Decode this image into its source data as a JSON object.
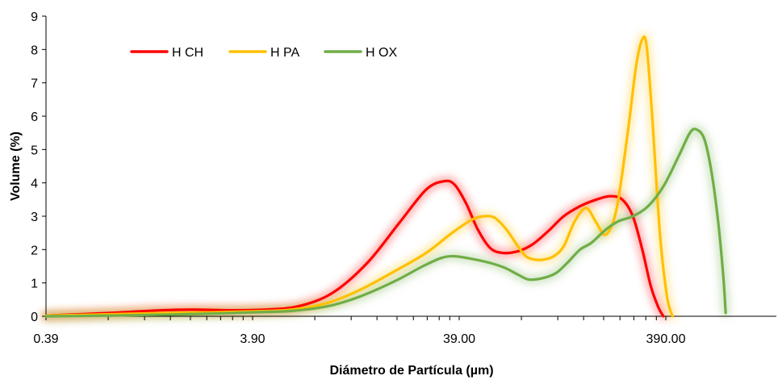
{
  "chart_data": {
    "type": "line",
    "xlabel": "Diámetro de Partícula (µm)",
    "ylabel": "Volume (%)",
    "x_scale": "log",
    "xlim": [
      0.39,
      800
    ],
    "ylim": [
      0,
      9
    ],
    "x_ticks": [
      {
        "value": 0.39,
        "label": "0.39"
      },
      {
        "value": 3.9,
        "label": "3.90"
      },
      {
        "value": 39.0,
        "label": "39.00"
      },
      {
        "value": 390.0,
        "label": "390.00"
      }
    ],
    "y_ticks": [
      {
        "value": 0,
        "label": "0"
      },
      {
        "value": 1,
        "label": "1"
      },
      {
        "value": 2,
        "label": "2"
      },
      {
        "value": 3,
        "label": "3"
      },
      {
        "value": 4,
        "label": "4"
      },
      {
        "value": 5,
        "label": "5"
      },
      {
        "value": 6,
        "label": "6"
      },
      {
        "value": 7,
        "label": "7"
      },
      {
        "value": 8,
        "label": "8"
      },
      {
        "value": 9,
        "label": "9"
      }
    ],
    "grid": false,
    "legend_position": "top-left",
    "series": [
      {
        "name": "H CH",
        "color": "#ff0000",
        "points": [
          [
            0.39,
            0.02
          ],
          [
            0.8,
            0.1
          ],
          [
            1.4,
            0.18
          ],
          [
            2.0,
            0.2
          ],
          [
            3.0,
            0.18
          ],
          [
            4.5,
            0.2
          ],
          [
            6.5,
            0.3
          ],
          [
            9.5,
            0.7
          ],
          [
            14,
            1.6
          ],
          [
            20,
            2.8
          ],
          [
            27,
            3.8
          ],
          [
            33,
            4.05
          ],
          [
            37,
            3.95
          ],
          [
            42,
            3.4
          ],
          [
            48,
            2.6
          ],
          [
            55,
            2.05
          ],
          [
            63,
            1.9
          ],
          [
            75,
            1.95
          ],
          [
            88,
            2.15
          ],
          [
            105,
            2.55
          ],
          [
            125,
            3.0
          ],
          [
            150,
            3.3
          ],
          [
            180,
            3.5
          ],
          [
            210,
            3.6
          ],
          [
            240,
            3.5
          ],
          [
            270,
            3.0
          ],
          [
            300,
            2.0
          ],
          [
            330,
            0.9
          ],
          [
            360,
            0.25
          ],
          [
            380,
            0.0
          ]
        ]
      },
      {
        "name": "H PA",
        "color": "#ffc000",
        "points": [
          [
            0.39,
            0.02
          ],
          [
            0.8,
            0.06
          ],
          [
            1.5,
            0.1
          ],
          [
            2.5,
            0.12
          ],
          [
            4.0,
            0.15
          ],
          [
            6.0,
            0.2
          ],
          [
            9.0,
            0.4
          ],
          [
            13,
            0.8
          ],
          [
            19,
            1.35
          ],
          [
            27,
            1.9
          ],
          [
            36,
            2.5
          ],
          [
            45,
            2.9
          ],
          [
            52,
            3.0
          ],
          [
            58,
            2.95
          ],
          [
            66,
            2.6
          ],
          [
            75,
            2.1
          ],
          [
            82,
            1.8
          ],
          [
            90,
            1.7
          ],
          [
            100,
            1.7
          ],
          [
            112,
            1.8
          ],
          [
            125,
            2.1
          ],
          [
            140,
            2.8
          ],
          [
            155,
            3.2
          ],
          [
            165,
            3.2
          ],
          [
            180,
            2.8
          ],
          [
            200,
            2.45
          ],
          [
            225,
            3.2
          ],
          [
            255,
            5.5
          ],
          [
            280,
            7.5
          ],
          [
            300,
            8.3
          ],
          [
            315,
            8.1
          ],
          [
            335,
            6.0
          ],
          [
            365,
            2.5
          ],
          [
            395,
            0.6
          ],
          [
            420,
            0.0
          ]
        ]
      },
      {
        "name": "H OX",
        "color": "#70ad47",
        "points": [
          [
            0.39,
            0.0
          ],
          [
            0.8,
            0.02
          ],
          [
            1.5,
            0.05
          ],
          [
            2.5,
            0.08
          ],
          [
            4.0,
            0.12
          ],
          [
            6.0,
            0.16
          ],
          [
            9.0,
            0.3
          ],
          [
            13,
            0.6
          ],
          [
            19,
            1.05
          ],
          [
            26,
            1.5
          ],
          [
            32,
            1.75
          ],
          [
            37,
            1.8
          ],
          [
            45,
            1.72
          ],
          [
            55,
            1.6
          ],
          [
            65,
            1.45
          ],
          [
            75,
            1.25
          ],
          [
            85,
            1.1
          ],
          [
            100,
            1.15
          ],
          [
            115,
            1.3
          ],
          [
            130,
            1.6
          ],
          [
            150,
            2.0
          ],
          [
            170,
            2.2
          ],
          [
            200,
            2.6
          ],
          [
            230,
            2.85
          ],
          [
            270,
            3.0
          ],
          [
            320,
            3.3
          ],
          [
            380,
            3.9
          ],
          [
            450,
            4.8
          ],
          [
            510,
            5.5
          ],
          [
            550,
            5.6
          ],
          [
            600,
            5.3
          ],
          [
            650,
            4.3
          ],
          [
            700,
            2.8
          ],
          [
            740,
            1.2
          ],
          [
            760,
            0.1
          ]
        ]
      }
    ]
  }
}
